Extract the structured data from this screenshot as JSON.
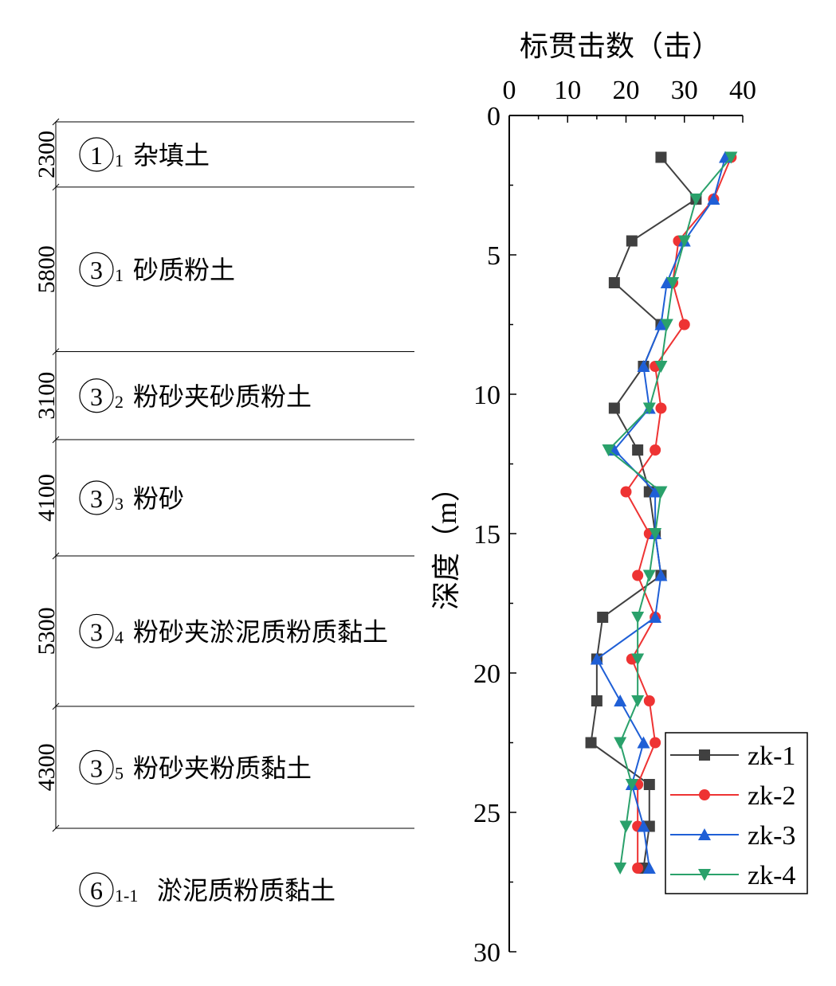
{
  "left_panel": {
    "layers": [
      {
        "thickness": 2300,
        "circle": "1",
        "sub": "1",
        "name": "杂填土"
      },
      {
        "thickness": 5800,
        "circle": "3",
        "sub": "1",
        "name": "砂质粉土"
      },
      {
        "thickness": 3100,
        "circle": "3",
        "sub": "2",
        "name": "粉砂夹砂质粉土"
      },
      {
        "thickness": 4100,
        "circle": "3",
        "sub": "3",
        "name": "粉砂"
      },
      {
        "thickness": 5300,
        "circle": "3",
        "sub": "4",
        "name": "粉砂夹淤泥质粉质黏土"
      },
      {
        "thickness": 4300,
        "circle": "3",
        "sub": "5",
        "name": "粉砂夹粉质黏土"
      }
    ],
    "bottom_layer": {
      "circle": "6",
      "sub": "1-1",
      "name": "淤泥质粉质黏土"
    }
  },
  "chart_data": {
    "type": "line",
    "xlabel": "标贯击数（击）",
    "ylabel": "深度（m）",
    "xlim": [
      0,
      40
    ],
    "ylim": [
      0,
      30
    ],
    "y_inverted": true,
    "x_axis_position": "top",
    "xticks": [
      0,
      10,
      20,
      30,
      40
    ],
    "yticks": [
      0,
      5,
      10,
      15,
      20,
      25,
      30
    ],
    "legend_position": "bottom-right",
    "grid": false,
    "series": [
      {
        "name": "zk-1",
        "color": "#404040",
        "marker": "square",
        "points": [
          [
            26,
            1.5
          ],
          [
            32,
            3
          ],
          [
            21,
            4.5
          ],
          [
            18,
            6
          ],
          [
            26,
            7.5
          ],
          [
            23,
            9
          ],
          [
            18,
            10.5
          ],
          [
            22,
            12
          ],
          [
            24,
            13.5
          ],
          [
            25,
            15
          ],
          [
            26,
            16.5
          ],
          [
            16,
            18
          ],
          [
            15,
            19.5
          ],
          [
            15,
            21
          ],
          [
            14,
            22.5
          ],
          [
            24,
            24
          ],
          [
            24,
            25.5
          ],
          [
            23,
            27
          ]
        ]
      },
      {
        "name": "zk-2",
        "color": "#ee3333",
        "marker": "circle",
        "points": [
          [
            38,
            1.5
          ],
          [
            35,
            3
          ],
          [
            29,
            4.5
          ],
          [
            28,
            6
          ],
          [
            30,
            7.5
          ],
          [
            25,
            9
          ],
          [
            26,
            10.5
          ],
          [
            25,
            12
          ],
          [
            20,
            13.5
          ],
          [
            24,
            15
          ],
          [
            22,
            16.5
          ],
          [
            25,
            18
          ],
          [
            21,
            19.5
          ],
          [
            24,
            21
          ],
          [
            25,
            22.5
          ],
          [
            22,
            24
          ],
          [
            22,
            25.5
          ],
          [
            22,
            27
          ]
        ]
      },
      {
        "name": "zk-3",
        "color": "#1f5fd6",
        "marker": "triangle-up",
        "points": [
          [
            37,
            1.5
          ],
          [
            35,
            3
          ],
          [
            30,
            4.5
          ],
          [
            27,
            6
          ],
          [
            26,
            7.5
          ],
          [
            23,
            9
          ],
          [
            24,
            10.5
          ],
          [
            18,
            12
          ],
          [
            25,
            13.5
          ],
          [
            25,
            15
          ],
          [
            26,
            16.5
          ],
          [
            25,
            18
          ],
          [
            15,
            19.5
          ],
          [
            19,
            21
          ],
          [
            23,
            22.5
          ],
          [
            21,
            24
          ],
          [
            23,
            25.5
          ],
          [
            24,
            27
          ]
        ]
      },
      {
        "name": "zk-4",
        "color": "#2aa16b",
        "marker": "triangle-down",
        "points": [
          [
            38,
            1.5
          ],
          [
            32,
            3
          ],
          [
            30,
            4.5
          ],
          [
            28,
            6
          ],
          [
            27,
            7.5
          ],
          [
            26,
            9
          ],
          [
            24,
            10.5
          ],
          [
            17,
            12
          ],
          [
            26,
            13.5
          ],
          [
            25,
            15
          ],
          [
            24,
            16.5
          ],
          [
            22,
            18
          ],
          [
            22,
            19.5
          ],
          [
            22,
            21
          ],
          [
            19,
            22.5
          ],
          [
            21,
            24
          ],
          [
            20,
            25.5
          ],
          [
            19,
            27
          ]
        ]
      }
    ]
  }
}
